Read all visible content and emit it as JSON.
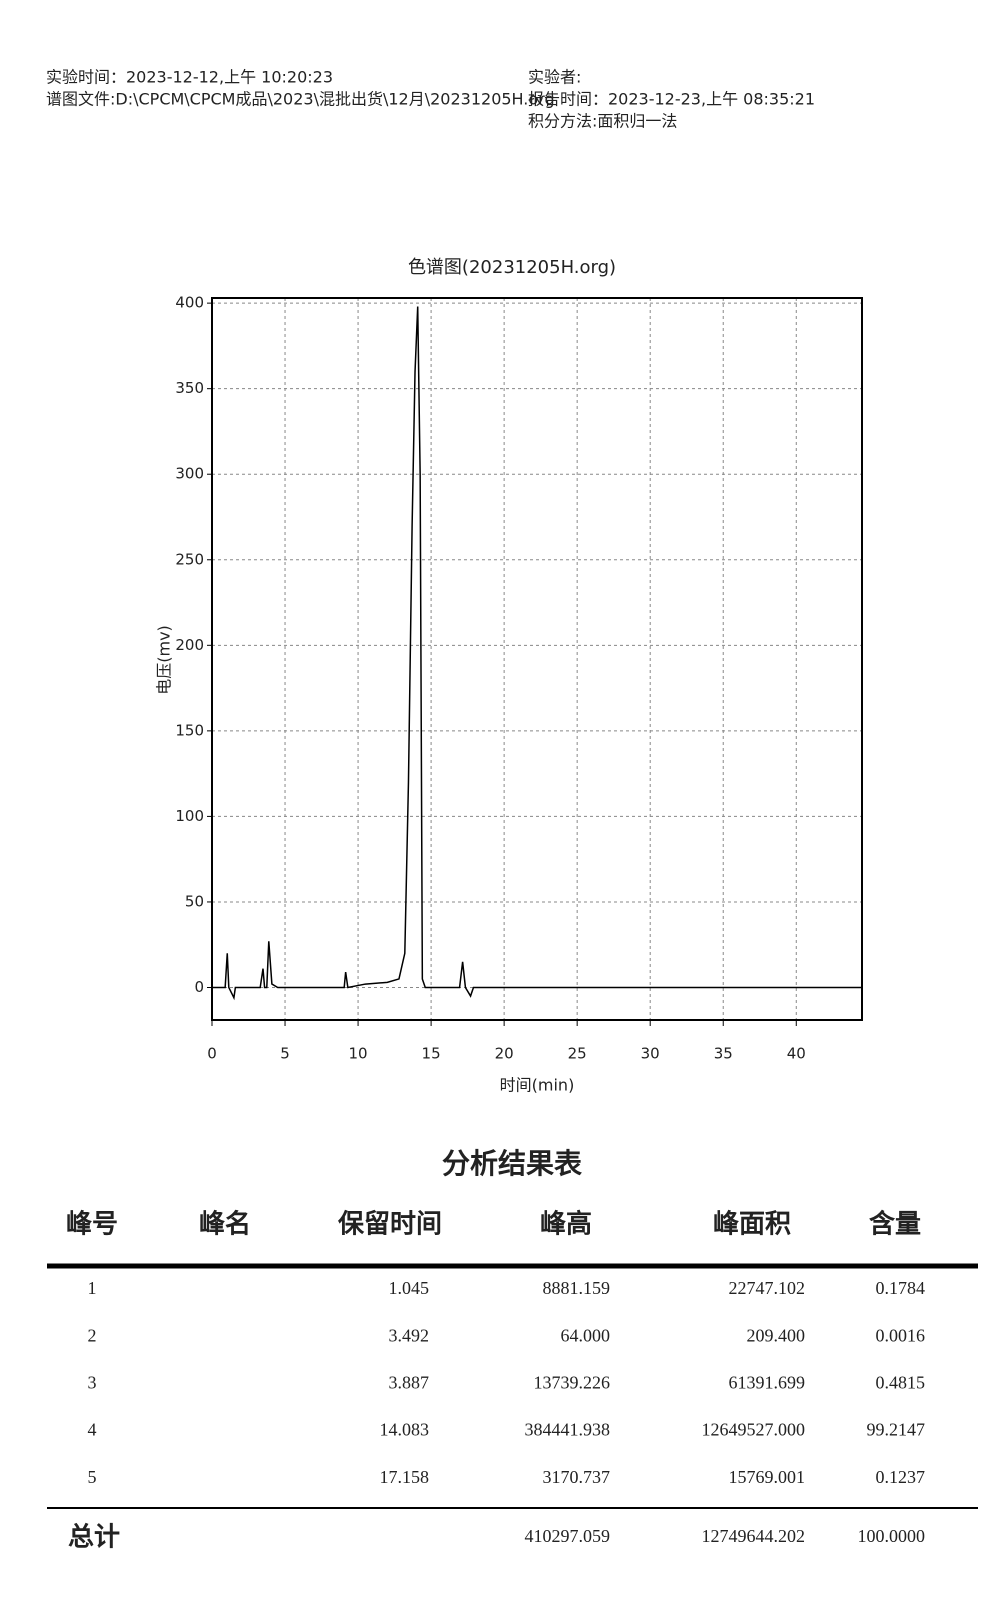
{
  "header": {
    "left": [
      "实验时间：2023-12-12,上午 10:20:23",
      "谱图文件:D:\\CPCM\\CPCM成品\\2023\\混批出货\\12月\\20231205H.org"
    ],
    "right": [
      "实验者:",
      "报告时间：2023-12-23,上午 08:35:21",
      "积分方法:面积归一法"
    ]
  },
  "chart_data": {
    "type": "line",
    "title": "色谱图(20231205H.org)",
    "x_label": "时间(min)",
    "y_label": "电压(mv)",
    "xlim": [
      0,
      44.5
    ],
    "ylim": [
      -19,
      403
    ],
    "xticks": [
      0,
      5,
      10,
      15,
      20,
      25,
      30,
      35,
      40
    ],
    "yticks": [
      0,
      50,
      100,
      150,
      200,
      250,
      300,
      350,
      400
    ],
    "grid": true,
    "series": [
      {
        "color": "#000000",
        "x": [
          0,
          0.9,
          1.045,
          1.15,
          1.5,
          1.6,
          3.3,
          3.492,
          3.6,
          3.75,
          3.887,
          4.1,
          4.5,
          9.05,
          9.15,
          9.3,
          10.5,
          12,
          12.8,
          13.2,
          13.45,
          13.7,
          13.9,
          14.083,
          14.25,
          14.4,
          14.6,
          16.95,
          17.158,
          17.35,
          17.7,
          17.9,
          44.5
        ],
        "values": [
          0,
          0,
          20,
          0,
          -6,
          0,
          0,
          11,
          0,
          0,
          27,
          2,
          0,
          0,
          9,
          0,
          2,
          3,
          5,
          20,
          120,
          270,
          360,
          398,
          300,
          5,
          0,
          0,
          15,
          0,
          -5,
          0,
          0
        ]
      }
    ]
  },
  "table": {
    "title": "分析结果表",
    "columns": [
      "峰号",
      "峰名",
      "保留时间",
      "峰高",
      "峰面积",
      "含量"
    ],
    "rows": [
      {
        "id": "1",
        "time": "1.045",
        "height": "8881.159",
        "area": "22747.102",
        "content": "0.1784"
      },
      {
        "id": "2",
        "time": "3.492",
        "height": "64.000",
        "area": "209.400",
        "content": "0.0016"
      },
      {
        "id": "3",
        "time": "3.887",
        "height": "13739.226",
        "area": "61391.699",
        "content": "0.4815"
      },
      {
        "id": "4",
        "time": "14.083",
        "height": "384441.938",
        "area": "12649527.000",
        "content": "99.2147"
      },
      {
        "id": "5",
        "time": "17.158",
        "height": "3170.737",
        "area": "15769.001",
        "content": "0.1237"
      }
    ],
    "total": {
      "label": "总计",
      "height": "410297.059",
      "area": "12749644.202",
      "content": "100.0000"
    }
  }
}
